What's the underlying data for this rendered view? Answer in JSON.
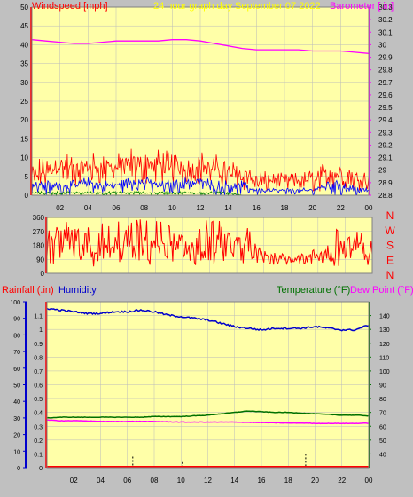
{
  "header": {
    "left_title": "Windspeed [mph]",
    "center_title": "24 hour graph day",
    "date": "September 07 2022",
    "right_title": "Barometer [.in]"
  },
  "lower_header": {
    "rainfall_label": "Rainfall (.in)",
    "humidity_label": "Humidity",
    "temperature_label": "Temperature (°F)",
    "dewpoint_label": "Dew Point (°F)"
  },
  "colors": {
    "background": "#c0c0c0",
    "plot_bg": "#ffffa8",
    "grid": "#bbbbbb",
    "wind": "#ff0000",
    "gust_blue": "#0000ff",
    "green": "#008000",
    "barometer": "#ff00ff",
    "humidity": "#0000cc",
    "temperature": "#007000",
    "dewpoint": "#ff00ff",
    "rain": "#ff0000"
  },
  "chart_data": [
    {
      "id": "wind-barometer",
      "type": "line",
      "x_ticks": [
        "02",
        "04",
        "06",
        "08",
        "10",
        "12",
        "14",
        "16",
        "18",
        "20",
        "22",
        "00"
      ],
      "ylabel_left": "Windspeed [mph]",
      "ylim_left": [
        0,
        50
      ],
      "y_ticks_left": [
        "0",
        "5",
        "10",
        "15",
        "20",
        "25",
        "30",
        "35",
        "40",
        "45",
        "50"
      ],
      "ylabel_right": "Barometer [.in]",
      "ylim_right": [
        28.8,
        30.3
      ],
      "y_ticks_right": [
        "28.8",
        "28.9",
        "29",
        "29.1",
        "29.2",
        "29.3",
        "29.4",
        "29.5",
        "29.6",
        "29.7",
        "29.8",
        "29.9",
        "30",
        "30.1",
        "30.2",
        "30.3"
      ],
      "series": [
        {
          "name": "Barometer [.in]",
          "axis": "right",
          "hours": [
            0,
            1,
            2,
            3,
            4,
            5,
            6,
            7,
            8,
            9,
            10,
            11,
            12,
            13,
            14,
            15,
            16,
            17,
            18,
            19,
            20,
            21,
            22,
            23,
            24
          ],
          "values": [
            30.04,
            30.03,
            30.02,
            30.01,
            30.01,
            30.02,
            30.03,
            30.03,
            30.03,
            30.03,
            30.04,
            30.04,
            30.03,
            30.01,
            29.99,
            29.97,
            29.96,
            29.96,
            29.96,
            29.96,
            29.95,
            29.95,
            29.95,
            29.94,
            29.93
          ]
        },
        {
          "name": "Windspeed [mph]",
          "axis": "left",
          "hours": [
            0,
            1,
            2,
            3,
            4,
            5,
            6,
            7,
            8,
            9,
            10,
            11,
            12,
            13,
            14,
            15,
            16,
            17,
            18,
            19,
            20,
            21,
            22,
            23,
            24
          ],
          "values": [
            4,
            5,
            6,
            5,
            6,
            6,
            6,
            6,
            7,
            6,
            6,
            6,
            6,
            5,
            5,
            4,
            3,
            3,
            3,
            3,
            3,
            4,
            4,
            4,
            3
          ],
          "max": [
            10,
            10,
            13,
            11,
            12,
            12,
            11,
            13,
            14,
            13,
            12,
            12,
            12,
            11,
            10,
            9,
            7,
            6,
            6,
            6,
            7,
            9,
            9,
            8,
            6
          ],
          "min": [
            2,
            2,
            3,
            2,
            3,
            3,
            3,
            3,
            3,
            3,
            3,
            3,
            3,
            2,
            2,
            1,
            1,
            1,
            1,
            1,
            1,
            1,
            1,
            1,
            1
          ]
        },
        {
          "name": "Blue",
          "axis": "left",
          "hours": [
            0,
            1,
            2,
            3,
            4,
            5,
            6,
            7,
            8,
            9,
            10,
            11,
            12,
            13,
            14,
            15,
            16,
            17,
            18,
            19,
            20,
            21,
            22,
            23,
            24
          ],
          "values": [
            2,
            2,
            2,
            2,
            3,
            2,
            2,
            3,
            3,
            2,
            2,
            3,
            3,
            2,
            2,
            2,
            1,
            1,
            1,
            1,
            1,
            2,
            2,
            1,
            1
          ],
          "max": [
            4,
            4,
            4,
            4,
            5,
            4,
            4,
            5,
            5,
            4,
            4,
            5,
            5,
            4,
            4,
            4,
            2,
            2,
            2,
            2,
            2,
            4,
            4,
            3,
            2
          ],
          "min": [
            0,
            0,
            0,
            0,
            1,
            0,
            0,
            1,
            1,
            0,
            0,
            1,
            1,
            0,
            0,
            0,
            0,
            0,
            0,
            0,
            0,
            0,
            0,
            0,
            0
          ]
        },
        {
          "name": "Green",
          "axis": "left",
          "hours": [
            0,
            1,
            2,
            3,
            4,
            5,
            6,
            7,
            8,
            9,
            10,
            11,
            12,
            13,
            14,
            15,
            16,
            17,
            18,
            19,
            20,
            21,
            22,
            23,
            24
          ],
          "values": [
            0.5,
            0.5,
            0.5,
            0.5,
            0.5,
            0.5,
            0.5,
            0.5,
            0.5,
            0.5,
            0.5,
            0.5,
            0.5,
            0.5,
            0.5,
            0,
            0,
            0,
            0,
            0,
            0,
            0,
            0,
            0,
            0
          ],
          "max": [
            1,
            1,
            1,
            1,
            1,
            1,
            1,
            1,
            1,
            1,
            1,
            1,
            1,
            1,
            1,
            0,
            0,
            0,
            0,
            0,
            0,
            0,
            0,
            0,
            0
          ],
          "min": [
            0,
            0,
            0,
            0,
            0,
            0,
            0,
            0,
            0,
            0,
            0,
            0,
            0,
            0,
            0,
            0,
            0,
            0,
            0,
            0,
            0,
            0,
            0,
            0,
            0
          ]
        }
      ]
    },
    {
      "id": "wind-direction",
      "type": "line",
      "x_ticks": [
        "02",
        "04",
        "06",
        "08",
        "10",
        "12",
        "14",
        "16",
        "18",
        "20",
        "22",
        "00"
      ],
      "ylim": [
        0,
        360
      ],
      "y_ticks": [
        "0",
        "90",
        "180",
        "270",
        "360"
      ],
      "right_labels": [
        "N",
        "W",
        "S",
        "E",
        "N"
      ],
      "series": [
        {
          "name": "Wind direction",
          "hours": [
            0,
            1,
            2,
            3,
            4,
            5,
            6,
            7,
            8,
            9,
            10,
            11,
            12,
            13,
            14,
            15,
            16,
            17,
            18,
            19,
            20,
            21,
            22,
            23,
            24
          ],
          "values": [
            90,
            100,
            110,
            90,
            100,
            120,
            110,
            100,
            130,
            120,
            100,
            90,
            110,
            120,
            100,
            90,
            80,
            70,
            80,
            90,
            80,
            90,
            100,
            90,
            80
          ],
          "max": [
            340,
            350,
            340,
            340,
            330,
            340,
            350,
            350,
            340,
            340,
            330,
            350,
            350,
            340,
            330,
            300,
            200,
            150,
            140,
            140,
            160,
            330,
            340,
            330,
            200
          ],
          "min": [
            40,
            40,
            50,
            40,
            40,
            50,
            40,
            40,
            50,
            40,
            40,
            40,
            40,
            50,
            40,
            40,
            40,
            60,
            60,
            50,
            50,
            40,
            40,
            40,
            50
          ]
        }
      ]
    },
    {
      "id": "rain-humidity-temperature",
      "type": "line",
      "x_ticks": [
        "02",
        "04",
        "06",
        "08",
        "10",
        "12",
        "14",
        "16",
        "18",
        "20",
        "22",
        "00"
      ],
      "ylim_humidity": [
        0,
        100
      ],
      "y_ticks_humidity": [
        "0",
        "10",
        "20",
        "30",
        "40",
        "50",
        "60",
        "70",
        "80",
        "90",
        "100"
      ],
      "ylim_rain": [
        0,
        1.2
      ],
      "y_ticks_rain": [
        "0",
        "0.1",
        "0.2",
        "0.3",
        "0.4",
        "0.5",
        "0.6",
        "0.7",
        "0.8",
        "0.9",
        "1",
        "1.1"
      ],
      "ylim_temperature": [
        30,
        150
      ],
      "y_ticks_temperature": [
        "40",
        "50",
        "60",
        "70",
        "80",
        "90",
        "100",
        "110",
        "120",
        "130",
        "140"
      ],
      "series": [
        {
          "name": "Humidity",
          "axis": "humidity",
          "hours": [
            0,
            1,
            2,
            3,
            4,
            5,
            6,
            7,
            8,
            9,
            10,
            11,
            12,
            13,
            14,
            15,
            16,
            17,
            18,
            19,
            20,
            21,
            22,
            23,
            24
          ],
          "values": [
            96,
            95,
            94,
            93,
            93,
            94,
            94,
            95,
            94,
            92,
            91,
            90,
            89,
            87,
            85,
            84,
            83,
            84,
            84,
            84,
            85,
            84,
            83,
            83,
            86
          ]
        },
        {
          "name": "Temperature (°F)",
          "axis": "temperature",
          "hours": [
            0,
            1,
            2,
            3,
            4,
            5,
            6,
            7,
            8,
            9,
            10,
            11,
            12,
            13,
            14,
            15,
            16,
            17,
            18,
            19,
            20,
            21,
            22,
            23,
            24
          ],
          "values": [
            66,
            66.5,
            66.5,
            66.5,
            66.5,
            66.5,
            66.5,
            66.5,
            67,
            67,
            67,
            67.5,
            68,
            69,
            70,
            71,
            70.5,
            70,
            70,
            69.5,
            69,
            68.5,
            68,
            68,
            67.5
          ]
        },
        {
          "name": "Dew Point (°F)",
          "axis": "temperature",
          "hours": [
            0,
            1,
            2,
            3,
            4,
            5,
            6,
            7,
            8,
            9,
            10,
            11,
            12,
            13,
            14,
            15,
            16,
            17,
            18,
            19,
            20,
            21,
            22,
            23,
            24
          ],
          "values": [
            64.5,
            64,
            64,
            63.8,
            63.5,
            63.4,
            63.5,
            63.5,
            63.4,
            63.2,
            63,
            63,
            63,
            63,
            63,
            62.8,
            62.6,
            62.5,
            62.3,
            62.3,
            62,
            62,
            62,
            62,
            62.2
          ]
        },
        {
          "name": "Rainfall (.in)",
          "axis": "rain",
          "type": "bar",
          "hours": [
            4.3,
            6.4,
            10.1,
            19.3
          ],
          "values": [
            0.004,
            0.08,
            0.04,
            0.1
          ]
        }
      ]
    }
  ]
}
